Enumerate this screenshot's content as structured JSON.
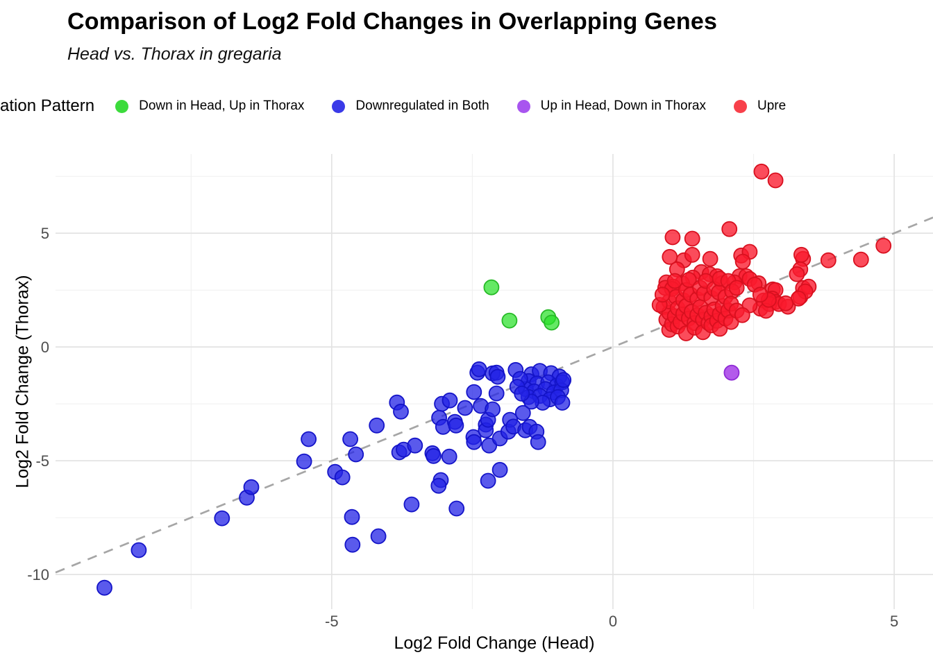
{
  "header": {
    "title": "Comparison of Log2 Fold Changes in Overlapping Genes",
    "subtitle": "Head vs. Thorax in gregaria"
  },
  "legend": {
    "title": "ation Pattern",
    "items": [
      {
        "label": "Down in Head, Up in Thorax",
        "color": "#3CDB3C"
      },
      {
        "label": "Downregulated in Both",
        "color": "#3A3AE8"
      },
      {
        "label": "Up in Head, Down in Thorax",
        "color": "#A855EF"
      },
      {
        "label": "Upre",
        "color": "#F8404A"
      }
    ]
  },
  "chart_data": {
    "type": "scatter",
    "title": "Comparison of Log2 Fold Changes in Overlapping Genes",
    "subtitle": "Head vs. Thorax in gregaria",
    "xlabel": "Log2 Fold Change (Head)",
    "ylabel": "Log2 Fold Change (Thorax)",
    "xlim": [
      -9.91,
      5.69
    ],
    "ylim": [
      -11.52,
      8.48
    ],
    "x_ticks": [
      -5,
      0,
      5
    ],
    "y_ticks": [
      -10,
      -5,
      0,
      5
    ],
    "x_minor_ticks": [
      -7.5,
      -2.5,
      2.5
    ],
    "y_minor_ticks": [
      -7.5,
      -2.5,
      2.5,
      7.5
    ],
    "grid": true,
    "colors": {
      "grid_major": "#E3E3E3",
      "grid_minor": "#F0F0F0",
      "tick_text": "#4D4D4D",
      "identity_line": "#A6A6A6"
    },
    "identity_line": {
      "style": "dashed",
      "slope": 1,
      "intercept": 0
    },
    "legend_position": "top",
    "series": [
      {
        "name": "Down in Head, Up in Thorax",
        "stroke": "#27BA27",
        "fill": "rgba(40,225,40,0.72)",
        "points": [
          [
            -2.16,
            2.62
          ],
          [
            -1.84,
            1.16
          ],
          [
            -1.15,
            1.31
          ],
          [
            -1.09,
            1.07
          ]
        ]
      },
      {
        "name": "Downregulated in Both",
        "stroke": "#1414C8",
        "fill": "rgba(35,35,230,0.75)",
        "points": [
          [
            -9.04,
            -10.58
          ],
          [
            -8.43,
            -8.93
          ],
          [
            -6.95,
            -7.53
          ],
          [
            -6.51,
            -6.62
          ],
          [
            -6.43,
            -6.16
          ],
          [
            -5.49,
            -5.03
          ],
          [
            -5.41,
            -4.05
          ],
          [
            -4.94,
            -5.49
          ],
          [
            -4.81,
            -5.73
          ],
          [
            -4.67,
            -4.05
          ],
          [
            -4.57,
            -4.72
          ],
          [
            -4.64,
            -7.47
          ],
          [
            -4.63,
            -8.69
          ],
          [
            -4.17,
            -8.32
          ],
          [
            -4.2,
            -3.45
          ],
          [
            -3.84,
            -2.44
          ],
          [
            -3.77,
            -2.84
          ],
          [
            -3.8,
            -4.63
          ],
          [
            -3.72,
            -4.51
          ],
          [
            -3.58,
            -6.92
          ],
          [
            -3.52,
            -4.33
          ],
          [
            -3.21,
            -4.67
          ],
          [
            -3.19,
            -4.79
          ],
          [
            -2.91,
            -4.82
          ],
          [
            -3.06,
            -5.85
          ],
          [
            -3.1,
            -6.1
          ],
          [
            -3.09,
            -3.11
          ],
          [
            -3.04,
            -2.5
          ],
          [
            -3.02,
            -3.51
          ],
          [
            -2.9,
            -2.35
          ],
          [
            -2.81,
            -3.29
          ],
          [
            -2.79,
            -3.45
          ],
          [
            -2.78,
            -7.1
          ],
          [
            -2.63,
            -2.68
          ],
          [
            -2.48,
            -3.96
          ],
          [
            -2.47,
            -4.18
          ],
          [
            -2.47,
            -1.98
          ],
          [
            -2.41,
            -1.13
          ],
          [
            -2.38,
            -0.98
          ],
          [
            -2.35,
            -2.59
          ],
          [
            -2.26,
            -3.41
          ],
          [
            -2.26,
            -3.66
          ],
          [
            -2.22,
            -3.2
          ],
          [
            -2.22,
            -5.88
          ],
          [
            -2.2,
            -4.33
          ],
          [
            -2.14,
            -2.74
          ],
          [
            -2.14,
            -1.16
          ],
          [
            -2.07,
            -2.04
          ],
          [
            -2.07,
            -1.13
          ],
          [
            -2.05,
            -1.31
          ],
          [
            -2.01,
            -4.02
          ],
          [
            -2.01,
            -5.4
          ],
          [
            -1.86,
            -3.72
          ],
          [
            -1.83,
            -3.2
          ],
          [
            -1.77,
            -3.5
          ],
          [
            -1.73,
            -1.01
          ],
          [
            -1.6,
            -2.9
          ],
          [
            -1.56,
            -3.66
          ],
          [
            -1.48,
            -3.51
          ],
          [
            -1.36,
            -3.72
          ],
          [
            -1.33,
            -4.18
          ],
          [
            -1.45,
            -1.2
          ],
          [
            -1.3,
            -1.05
          ],
          [
            -1.1,
            -1.15
          ],
          [
            -0.95,
            -1.3
          ],
          [
            -1.5,
            -1.5
          ],
          [
            -1.35,
            -1.6
          ],
          [
            -1.15,
            -1.55
          ],
          [
            -1.0,
            -1.7
          ],
          [
            -0.9,
            -1.55
          ],
          [
            -1.55,
            -1.85
          ],
          [
            -1.4,
            -1.95
          ],
          [
            -1.2,
            -1.85
          ],
          [
            -1.05,
            -2.0
          ],
          [
            -0.92,
            -1.9
          ],
          [
            -1.5,
            -2.2
          ],
          [
            -1.3,
            -2.15
          ],
          [
            -1.12,
            -2.3
          ],
          [
            -0.98,
            -2.2
          ],
          [
            -1.25,
            -2.45
          ],
          [
            -1.45,
            -2.4
          ],
          [
            -1.65,
            -1.4
          ],
          [
            -1.7,
            -1.75
          ],
          [
            -1.62,
            -2.05
          ],
          [
            -0.88,
            -1.45
          ],
          [
            -0.9,
            -2.45
          ]
        ]
      },
      {
        "name": "Up in Head, Down in Thorax",
        "stroke": "#8F2BD6",
        "fill": "rgba(160,50,230,0.8)",
        "points": [
          [
            2.11,
            -1.13
          ]
        ]
      },
      {
        "name": "Upregulated in Both",
        "stroke": "#D8101F",
        "fill": "rgba(250,25,45,0.78)",
        "points": [
          [
            2.64,
            7.71
          ],
          [
            2.89,
            7.32
          ],
          [
            2.07,
            5.18
          ],
          [
            1.06,
            4.82
          ],
          [
            1.41,
            4.76
          ],
          [
            4.81,
            4.45
          ],
          [
            4.41,
            3.84
          ],
          [
            3.83,
            3.81
          ],
          [
            3.38,
            3.87
          ],
          [
            3.35,
            4.05
          ],
          [
            3.33,
            3.41
          ],
          [
            3.27,
            3.2
          ],
          [
            1.01,
            3.96
          ],
          [
            1.26,
            3.81
          ],
          [
            1.41,
            4.05
          ],
          [
            1.73,
            3.87
          ],
          [
            2.28,
            4.02
          ],
          [
            2.43,
            4.18
          ],
          [
            2.31,
            3.75
          ],
          [
            1.14,
            3.41
          ],
          [
            1.57,
            3.29
          ],
          [
            1.72,
            3.2
          ],
          [
            1.85,
            3.11
          ],
          [
            2.25,
            3.11
          ],
          [
            2.37,
            3.11
          ],
          [
            1.42,
            3.05
          ],
          [
            2.43,
            2.99
          ],
          [
            0.95,
            2.84
          ],
          [
            1.23,
            2.8
          ],
          [
            1.94,
            2.8
          ],
          [
            2.16,
            2.84
          ],
          [
            2.59,
            2.8
          ],
          [
            2.52,
            2.74
          ],
          [
            1.07,
            2.65
          ],
          [
            2.84,
            2.53
          ],
          [
            2.89,
            2.5
          ],
          [
            2.68,
            2.04
          ],
          [
            2.62,
            1.68
          ],
          [
            2.83,
            2.13
          ],
          [
            2.89,
            1.98
          ],
          [
            2.78,
            1.89
          ],
          [
            2.43,
            1.83
          ],
          [
            2.72,
            1.59
          ],
          [
            2.95,
            1.89
          ],
          [
            3.11,
            1.77
          ],
          [
            2.77,
            2.07
          ],
          [
            3.33,
            2.2
          ],
          [
            3.38,
            2.59
          ],
          [
            3.48,
            2.65
          ],
          [
            3.42,
            2.44
          ],
          [
            3.3,
            2.13
          ],
          [
            3.07,
            1.92
          ],
          [
            2.62,
            2.3
          ],
          [
            0.9,
            1.75
          ],
          [
            0.93,
            2.6
          ],
          [
            0.95,
            1.2
          ],
          [
            1.0,
            1.5
          ],
          [
            1.0,
            2.0
          ],
          [
            1.0,
            0.75
          ],
          [
            1.05,
            1.0
          ],
          [
            1.05,
            2.55
          ],
          [
            1.1,
            1.35
          ],
          [
            1.1,
            2.9
          ],
          [
            1.12,
            2.2
          ],
          [
            1.15,
            1.7
          ],
          [
            1.15,
            0.9
          ],
          [
            1.2,
            1.1
          ],
          [
            1.25,
            1.45
          ],
          [
            1.25,
            2.05
          ],
          [
            1.3,
            1.8
          ],
          [
            1.3,
            0.6
          ],
          [
            1.3,
            2.5
          ],
          [
            1.35,
            1.25
          ],
          [
            1.35,
            2.95
          ],
          [
            1.38,
            2.3
          ],
          [
            1.4,
            1.55
          ],
          [
            1.45,
            1.05
          ],
          [
            1.45,
            0.85
          ],
          [
            1.5,
            1.4
          ],
          [
            1.5,
            2.1
          ],
          [
            1.55,
            1.75
          ],
          [
            1.55,
            2.6
          ],
          [
            1.6,
            1.2
          ],
          [
            1.6,
            0.65
          ],
          [
            1.62,
            2.35
          ],
          [
            1.65,
            1.5
          ],
          [
            1.65,
            2.9
          ],
          [
            1.7,
            1.05
          ],
          [
            1.75,
            1.35
          ],
          [
            1.75,
            2.15
          ],
          [
            1.75,
            0.95
          ],
          [
            1.8,
            1.65
          ],
          [
            1.8,
            2.55
          ],
          [
            1.85,
            1.15
          ],
          [
            1.88,
            2.4
          ],
          [
            1.9,
            1.45
          ],
          [
            1.9,
            0.8
          ],
          [
            1.9,
            3.0
          ],
          [
            1.95,
            1.8
          ],
          [
            2.0,
            1.25
          ],
          [
            2.0,
            2.2
          ],
          [
            2.05,
            1.6
          ],
          [
            2.05,
            2.9
          ],
          [
            2.1,
            1.1
          ],
          [
            2.12,
            2.45
          ],
          [
            2.1,
            1.9
          ],
          [
            2.2,
            1.6
          ],
          [
            2.2,
            2.6
          ],
          [
            2.3,
            1.4
          ],
          [
            0.83,
            1.85
          ],
          [
            0.88,
            2.3
          ]
        ]
      }
    ]
  }
}
